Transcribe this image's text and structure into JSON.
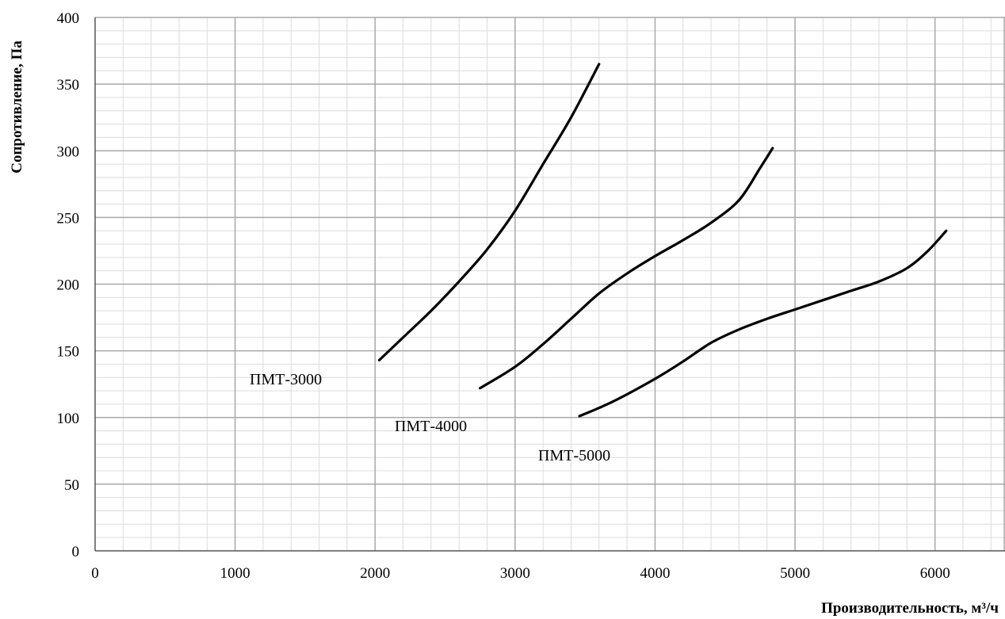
{
  "chart_data": {
    "type": "line",
    "title": "",
    "xlabel": "Производительность, м³/ч",
    "ylabel": "Сопротивление, Па",
    "xlim": [
      0,
      6500
    ],
    "ylim": [
      0,
      400
    ],
    "x_ticks": [
      0,
      1000,
      2000,
      3000,
      4000,
      5000,
      6000
    ],
    "y_ticks": [
      0,
      50,
      100,
      150,
      200,
      250,
      300,
      350,
      400
    ],
    "x_minor_step": 200,
    "y_minor_step": 10,
    "grid": true,
    "legend": "none",
    "line_color": "#000000",
    "series": [
      {
        "name": "ПМТ-3000",
        "points": [
          [
            2030,
            143
          ],
          [
            2200,
            160
          ],
          [
            2400,
            180
          ],
          [
            2600,
            202
          ],
          [
            2800,
            226
          ],
          [
            3000,
            255
          ],
          [
            3200,
            290
          ],
          [
            3400,
            325
          ],
          [
            3600,
            365
          ]
        ]
      },
      {
        "name": "ПМТ-4000",
        "points": [
          [
            2750,
            122
          ],
          [
            3000,
            138
          ],
          [
            3200,
            155
          ],
          [
            3400,
            174
          ],
          [
            3600,
            193
          ],
          [
            3800,
            208
          ],
          [
            4000,
            221
          ],
          [
            4200,
            233
          ],
          [
            4400,
            246
          ],
          [
            4600,
            263
          ],
          [
            4750,
            287
          ],
          [
            4840,
            302
          ]
        ]
      },
      {
        "name": "ПМТ-5000",
        "points": [
          [
            3460,
            101
          ],
          [
            3700,
            112
          ],
          [
            4000,
            129
          ],
          [
            4200,
            142
          ],
          [
            4400,
            156
          ],
          [
            4600,
            166
          ],
          [
            4800,
            174
          ],
          [
            5000,
            181
          ],
          [
            5200,
            188
          ],
          [
            5400,
            195
          ],
          [
            5600,
            202
          ],
          [
            5800,
            212
          ],
          [
            5950,
            225
          ],
          [
            6080,
            240
          ]
        ]
      }
    ],
    "series_labels": [
      "ПМТ-3000",
      "ПМТ-4000",
      "ПМТ-5000"
    ]
  }
}
